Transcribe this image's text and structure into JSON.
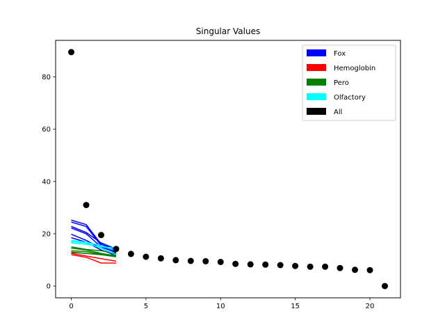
{
  "chart_data": {
    "type": "line",
    "title": "Singular Values",
    "xlabel": "",
    "ylabel": "",
    "xlim": [
      -1.05,
      22.05
    ],
    "ylim": [
      -4.5,
      94.0
    ],
    "xticks": [
      0,
      5,
      10,
      15,
      20
    ],
    "yticks": [
      0,
      20,
      40,
      60,
      80
    ],
    "grid": false,
    "legend_position": "top-right",
    "legend": [
      {
        "label": "Fox",
        "color": "#0000ff"
      },
      {
        "label": "Hemoglobin",
        "color": "#ff0000"
      },
      {
        "label": "Pero",
        "color": "#008000"
      },
      {
        "label": "Olfactory",
        "color": "#00ffff"
      },
      {
        "label": "All",
        "color": "#000000"
      }
    ],
    "x_lines": [
      0,
      1,
      2,
      3
    ],
    "line_groups": [
      {
        "name": "Fox",
        "color": "#0000ff",
        "lines": [
          [
            25.2,
            23.5,
            16.0,
            13.8
          ],
          [
            24.5,
            22.8,
            15.5,
            13.2
          ],
          [
            22.8,
            20.5,
            16.5,
            14.2
          ],
          [
            22.2,
            20.0,
            15.0,
            12.8
          ],
          [
            19.8,
            17.5,
            14.5,
            12.0
          ],
          [
            18.5,
            16.8,
            13.8,
            11.8
          ]
        ]
      },
      {
        "name": "Hemoglobin",
        "color": "#ff0000",
        "lines": [
          [
            12.5,
            11.5,
            10.5,
            9.5
          ],
          [
            12.0,
            11.0,
            8.8,
            8.8
          ],
          [
            13.0,
            12.5,
            12.0,
            11.5
          ]
        ]
      },
      {
        "name": "Pero",
        "color": "#008000",
        "lines": [
          [
            15.0,
            14.0,
            13.5,
            12.5
          ],
          [
            14.5,
            13.8,
            12.5,
            11.5
          ],
          [
            13.5,
            13.2,
            12.2,
            11.8
          ],
          [
            12.8,
            12.5,
            12.0,
            11.2
          ]
        ]
      },
      {
        "name": "Olfactory",
        "color": "#00ffff",
        "lines": [
          [
            17.5,
            16.8,
            15.5,
            13.5
          ],
          [
            17.0,
            16.5,
            14.5,
            12.0
          ],
          [
            16.5,
            16.0,
            15.0,
            14.5
          ]
        ]
      }
    ],
    "scatter": {
      "name": "All",
      "color": "#000000",
      "x": [
        0,
        1,
        2,
        3,
        4,
        5,
        6,
        7,
        8,
        9,
        10,
        11,
        12,
        13,
        14,
        15,
        16,
        17,
        18,
        19,
        20,
        21
      ],
      "y": [
        89.5,
        31.0,
        19.5,
        14.2,
        12.3,
        11.2,
        10.6,
        9.9,
        9.6,
        9.5,
        9.2,
        8.5,
        8.3,
        8.2,
        8.0,
        7.7,
        7.4,
        7.4,
        6.9,
        6.2,
        6.1,
        0.0
      ]
    }
  }
}
